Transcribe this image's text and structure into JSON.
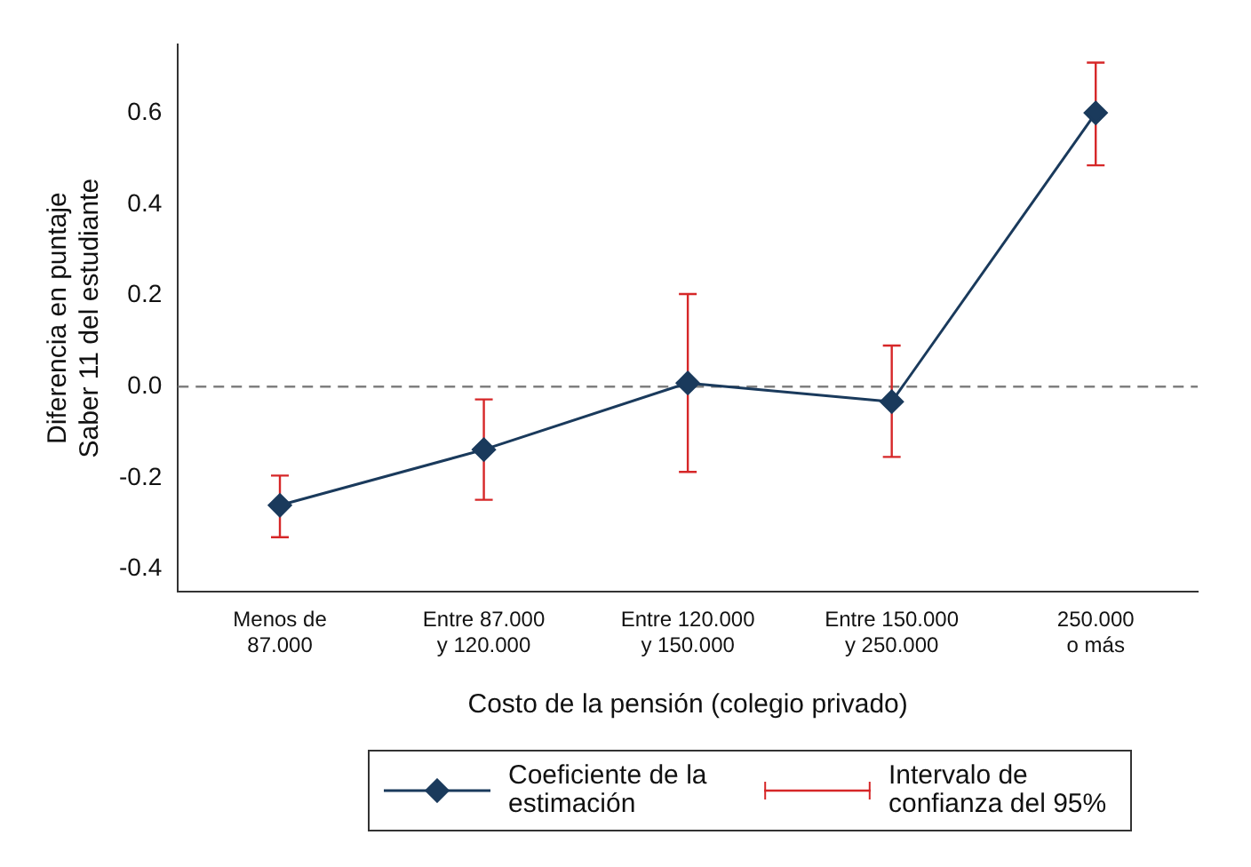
{
  "chart_data": {
    "type": "line",
    "xlabel": "Costo de la pensión (colegio privado)",
    "ylabel": "Diferencia en puntaje Saber 11 del estudiante",
    "categories": [
      "Menos de 87.000",
      "Entre 87.000 y 120.000",
      "Entre 120.000 y 150.000",
      "Entre 150.000 y 250.000",
      "250.000 o más"
    ],
    "series": [
      {
        "name": "Coeficiente de la estimación",
        "color": "#1a3a5c",
        "values": [
          -0.26,
          -0.138,
          0.008,
          -0.033,
          0.6
        ],
        "errors": [
          [
            -0.33,
            -0.195
          ],
          [
            -0.248,
            -0.028
          ],
          [
            -0.187,
            0.203
          ],
          [
            -0.154,
            0.09
          ],
          [
            0.485,
            0.71
          ]
        ]
      }
    ],
    "annotations": [
      "Intervalo de confianza del 95%"
    ],
    "ylim": [
      -0.45,
      0.75
    ],
    "yticks": [
      -0.4,
      -0.2,
      {
        "value": 0,
        "label": "0.0"
      },
      0.2,
      0.4,
      0.6
    ],
    "ref_lines": [
      {
        "axis": "y",
        "value": 0,
        "color": "#7f7f7f",
        "line_style": "dashed"
      }
    ],
    "marker": "diamond",
    "legend": "bottom",
    "grid": false
  }
}
